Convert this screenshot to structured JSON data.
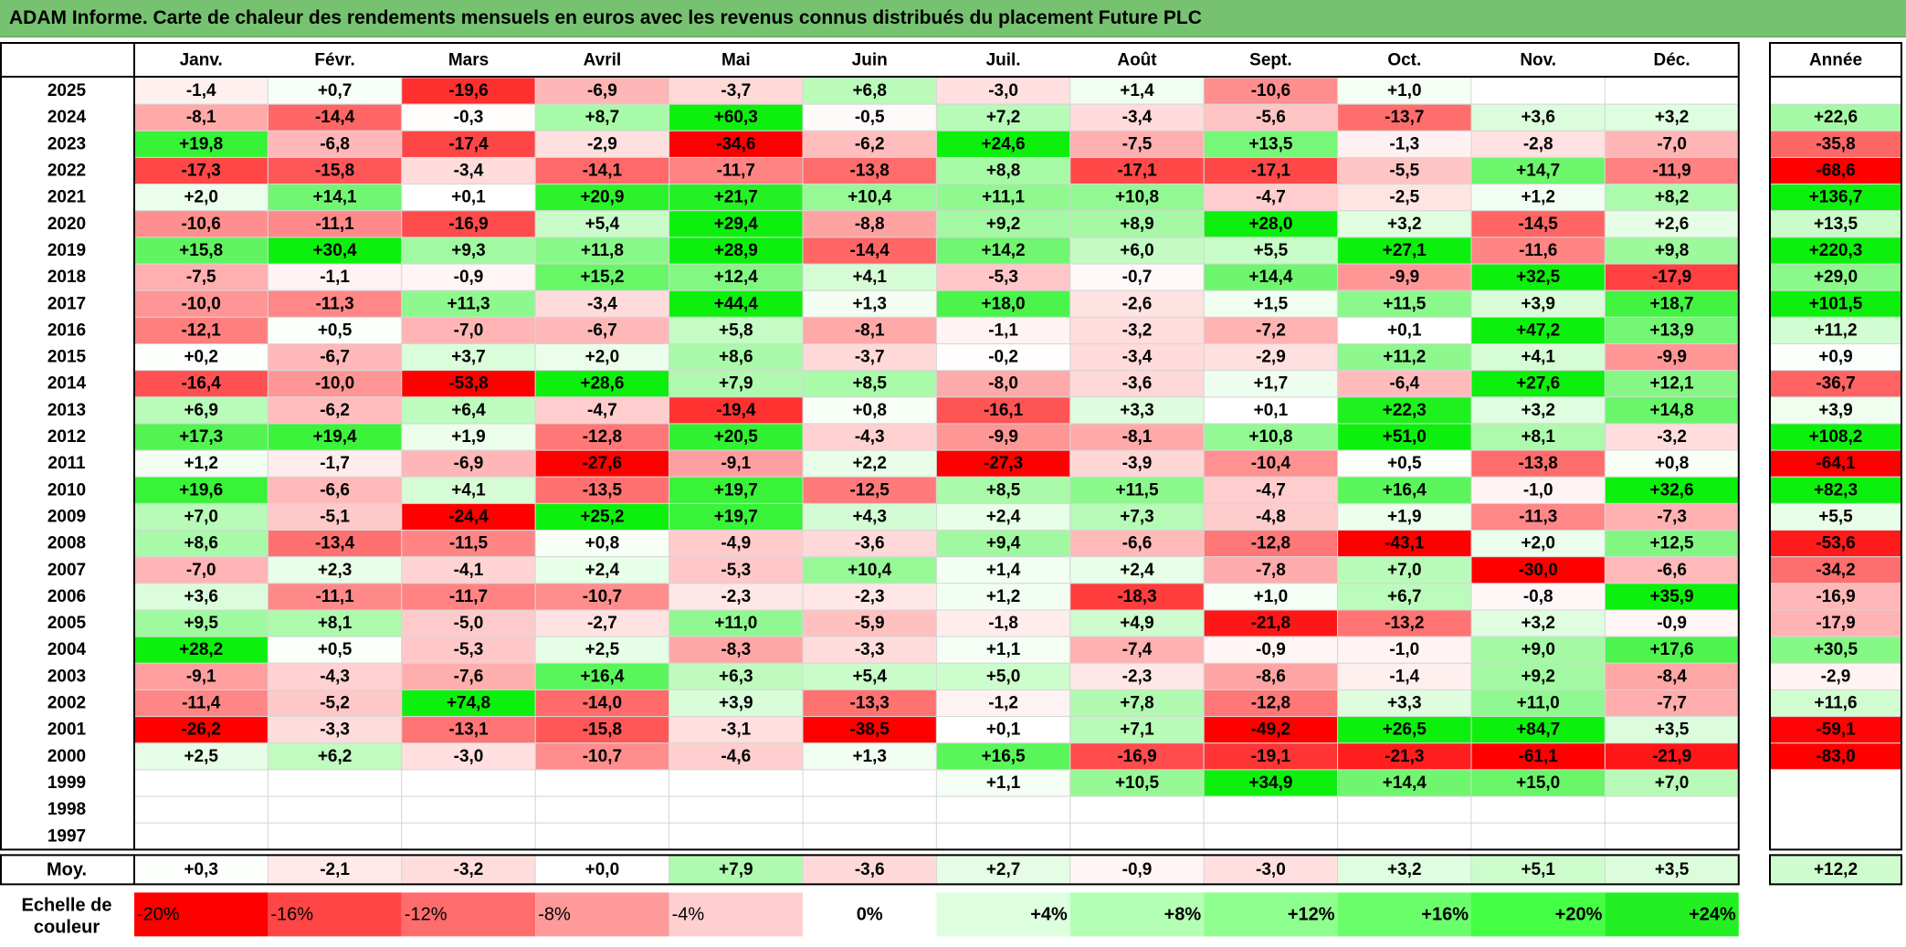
{
  "title": "ADAM Informe. Carte de chaleur des rendements mensuels en euros avec les revenus connus distribués du placement Future PLC",
  "chart_data": {
    "type": "heatmap",
    "title": "ADAM Informe. Carte de chaleur des rendements mensuels en euros avec les revenus connus distribués du placement Future PLC",
    "columns": [
      "Janv.",
      "Févr.",
      "Mars",
      "Avril",
      "Mai",
      "Juin",
      "Juil.",
      "Août",
      "Sept.",
      "Oct.",
      "Nov.",
      "Déc."
    ],
    "annual_header": "Année",
    "rows": [
      {
        "year": "2025",
        "values": [
          "-1,4",
          "+0,7",
          "-19,6",
          "-6,9",
          "-3,7",
          "+6,8",
          "-3,0",
          "+1,4",
          "-10,6",
          "+1,0",
          "",
          ""
        ],
        "annual": ""
      },
      {
        "year": "2024",
        "values": [
          "-8,1",
          "-14,4",
          "-0,3",
          "+8,7",
          "+60,3",
          "-0,5",
          "+7,2",
          "-3,4",
          "-5,6",
          "-13,7",
          "+3,6",
          "+3,2"
        ],
        "annual": "+22,6"
      },
      {
        "year": "2023",
        "values": [
          "+19,8",
          "-6,8",
          "-17,4",
          "-2,9",
          "-34,6",
          "-6,2",
          "+24,6",
          "-7,5",
          "+13,5",
          "-1,3",
          "-2,8",
          "-7,0"
        ],
        "annual": "-35,8"
      },
      {
        "year": "2022",
        "values": [
          "-17,3",
          "-15,8",
          "-3,4",
          "-14,1",
          "-11,7",
          "-13,8",
          "+8,8",
          "-17,1",
          "-17,1",
          "-5,5",
          "+14,7",
          "-11,9"
        ],
        "annual": "-68,6"
      },
      {
        "year": "2021",
        "values": [
          "+2,0",
          "+14,1",
          "+0,1",
          "+20,9",
          "+21,7",
          "+10,4",
          "+11,1",
          "+10,8",
          "-4,7",
          "-2,5",
          "+1,2",
          "+8,2"
        ],
        "annual": "+136,7"
      },
      {
        "year": "2020",
        "values": [
          "-10,6",
          "-11,1",
          "-16,9",
          "+5,4",
          "+29,4",
          "-8,8",
          "+9,2",
          "+8,9",
          "+28,0",
          "+3,2",
          "-14,5",
          "+2,6"
        ],
        "annual": "+13,5"
      },
      {
        "year": "2019",
        "values": [
          "+15,8",
          "+30,4",
          "+9,3",
          "+11,8",
          "+28,9",
          "-14,4",
          "+14,2",
          "+6,0",
          "+5,5",
          "+27,1",
          "-11,6",
          "+9,8"
        ],
        "annual": "+220,3"
      },
      {
        "year": "2018",
        "values": [
          "-7,5",
          "-1,1",
          "-0,9",
          "+15,2",
          "+12,4",
          "+4,1",
          "-5,3",
          "-0,7",
          "+14,4",
          "-9,9",
          "+32,5",
          "-17,9"
        ],
        "annual": "+29,0"
      },
      {
        "year": "2017",
        "values": [
          "-10,0",
          "-11,3",
          "+11,3",
          "-3,4",
          "+44,4",
          "+1,3",
          "+18,0",
          "-2,6",
          "+1,5",
          "+11,5",
          "+3,9",
          "+18,7"
        ],
        "annual": "+101,5"
      },
      {
        "year": "2016",
        "values": [
          "-12,1",
          "+0,5",
          "-7,0",
          "-6,7",
          "+5,8",
          "-8,1",
          "-1,1",
          "-3,2",
          "-7,2",
          "+0,1",
          "+47,2",
          "+13,9"
        ],
        "annual": "+11,2"
      },
      {
        "year": "2015",
        "values": [
          "+0,2",
          "-6,7",
          "+3,7",
          "+2,0",
          "+8,6",
          "-3,7",
          "-0,2",
          "-3,4",
          "-2,9",
          "+11,2",
          "+4,1",
          "-9,9"
        ],
        "annual": "+0,9"
      },
      {
        "year": "2014",
        "values": [
          "-16,4",
          "-10,0",
          "-53,8",
          "+28,6",
          "+7,9",
          "+8,5",
          "-8,0",
          "-3,6",
          "+1,7",
          "-6,4",
          "+27,6",
          "+12,1"
        ],
        "annual": "-36,7"
      },
      {
        "year": "2013",
        "values": [
          "+6,9",
          "-6,2",
          "+6,4",
          "-4,7",
          "-19,4",
          "+0,8",
          "-16,1",
          "+3,3",
          "+0,1",
          "+22,3",
          "+3,2",
          "+14,8"
        ],
        "annual": "+3,9"
      },
      {
        "year": "2012",
        "values": [
          "+17,3",
          "+19,4",
          "+1,9",
          "-12,8",
          "+20,5",
          "-4,3",
          "-9,9",
          "-8,1",
          "+10,8",
          "+51,0",
          "+8,1",
          "-3,2"
        ],
        "annual": "+108,2"
      },
      {
        "year": "2011",
        "values": [
          "+1,2",
          "-1,7",
          "-6,9",
          "-27,6",
          "-9,1",
          "+2,2",
          "-27,3",
          "-3,9",
          "-10,4",
          "+0,5",
          "-13,8",
          "+0,8"
        ],
        "annual": "-64,1"
      },
      {
        "year": "2010",
        "values": [
          "+19,6",
          "-6,6",
          "+4,1",
          "-13,5",
          "+19,7",
          "-12,5",
          "+8,5",
          "+11,5",
          "-4,7",
          "+16,4",
          "-1,0",
          "+32,6"
        ],
        "annual": "+82,3"
      },
      {
        "year": "2009",
        "values": [
          "+7,0",
          "-5,1",
          "-24,4",
          "+25,2",
          "+19,7",
          "+4,3",
          "+2,4",
          "+7,3",
          "-4,8",
          "+1,9",
          "-11,3",
          "-7,3"
        ],
        "annual": "+5,5"
      },
      {
        "year": "2008",
        "values": [
          "+8,6",
          "-13,4",
          "-11,5",
          "+0,8",
          "-4,9",
          "-3,6",
          "+9,4",
          "-6,6",
          "-12,8",
          "-43,1",
          "+2,0",
          "+12,5"
        ],
        "annual": "-53,6"
      },
      {
        "year": "2007",
        "values": [
          "-7,0",
          "+2,3",
          "-4,1",
          "+2,4",
          "-5,3",
          "+10,4",
          "+1,4",
          "+2,4",
          "-7,8",
          "+7,0",
          "-30,0",
          "-6,6"
        ],
        "annual": "-34,2"
      },
      {
        "year": "2006",
        "values": [
          "+3,6",
          "-11,1",
          "-11,7",
          "-10,7",
          "-2,3",
          "-2,3",
          "+1,2",
          "-18,3",
          "+1,0",
          "+6,7",
          "-0,8",
          "+35,9"
        ],
        "annual": "-16,9"
      },
      {
        "year": "2005",
        "values": [
          "+9,5",
          "+8,1",
          "-5,0",
          "-2,7",
          "+11,0",
          "-5,9",
          "-1,8",
          "+4,9",
          "-21,8",
          "-13,2",
          "+3,2",
          "-0,9"
        ],
        "annual": "-17,9"
      },
      {
        "year": "2004",
        "values": [
          "+28,2",
          "+0,5",
          "-5,3",
          "+2,5",
          "-8,3",
          "-3,3",
          "+1,1",
          "-7,4",
          "-0,9",
          "-1,0",
          "+9,0",
          "+17,6"
        ],
        "annual": "+30,5"
      },
      {
        "year": "2003",
        "values": [
          "-9,1",
          "-4,3",
          "-7,6",
          "+16,4",
          "+6,3",
          "+5,4",
          "+5,0",
          "-2,3",
          "-8,6",
          "-1,4",
          "+9,2",
          "-8,4"
        ],
        "annual": "-2,9"
      },
      {
        "year": "2002",
        "values": [
          "-11,4",
          "-5,2",
          "+74,8",
          "-14,0",
          "+3,9",
          "-13,3",
          "-1,2",
          "+7,8",
          "-12,8",
          "+3,3",
          "+11,0",
          "-7,7"
        ],
        "annual": "+11,6"
      },
      {
        "year": "2001",
        "values": [
          "-26,2",
          "-3,3",
          "-13,1",
          "-15,8",
          "-3,1",
          "-38,5",
          "+0,1",
          "+7,1",
          "-49,2",
          "+26,5",
          "+84,7",
          "+3,5"
        ],
        "annual": "-59,1"
      },
      {
        "year": "2000",
        "values": [
          "+2,5",
          "+6,2",
          "-3,0",
          "-10,7",
          "-4,6",
          "+1,3",
          "+16,5",
          "-16,9",
          "-19,1",
          "-21,3",
          "-61,1",
          "-21,9"
        ],
        "annual": "-83,0"
      },
      {
        "year": "1999",
        "values": [
          "",
          "",
          "",
          "",
          "",
          "",
          "+1,1",
          "+10,5",
          "+34,9",
          "+14,4",
          "+15,0",
          "+7,0"
        ],
        "annual": ""
      },
      {
        "year": "1998",
        "values": [
          "",
          "",
          "",
          "",
          "",
          "",
          "",
          "",
          "",
          "",
          "",
          ""
        ],
        "annual": ""
      },
      {
        "year": "1997",
        "values": [
          "",
          "",
          "",
          "",
          "",
          "",
          "",
          "",
          "",
          "",
          "",
          ""
        ],
        "annual": ""
      }
    ],
    "average": {
      "label": "Moy.",
      "values": [
        "+0,3",
        "-2,1",
        "-3,2",
        "+0,0",
        "+7,9",
        "-3,6",
        "+2,7",
        "-0,9",
        "-3,0",
        "+3,2",
        "+5,1",
        "+3,5"
      ],
      "annual": "+12,2"
    },
    "scale": {
      "label_lines": [
        "Echelle de",
        "couleur"
      ],
      "steps": [
        "-20%",
        "-16%",
        "-12%",
        "-8%",
        "-4%",
        "0%",
        "+4%",
        "+8%",
        "+12%",
        "+16%",
        "+20%",
        "+24%"
      ],
      "colors": [
        "#ff0000",
        "#ff4545",
        "#ff6c6c",
        "#ff9a9a",
        "#ffcfcf",
        "#ffffff",
        "#ddffdd",
        "#b3ffb3",
        "#8eff8e",
        "#6aff6a",
        "#44ff44",
        "#22f022"
      ]
    }
  }
}
